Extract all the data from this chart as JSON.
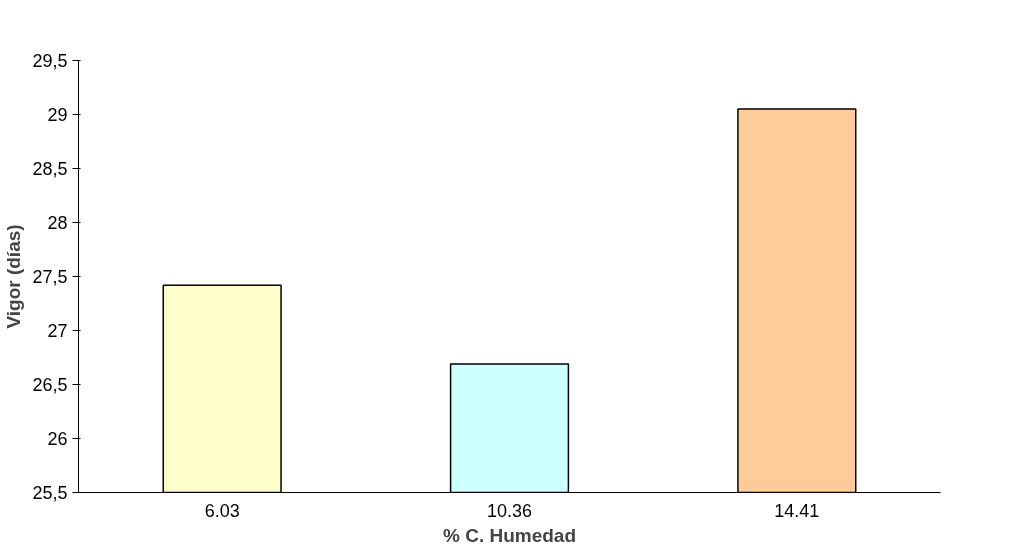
{
  "chart_data": {
    "type": "bar",
    "xlabel": "% C. Humedad",
    "ylabel": "Vigor (días)",
    "categories": [
      "6.03",
      "10.36",
      "14.41"
    ],
    "values": [
      27.42,
      26.69,
      29.05
    ],
    "colors": [
      "#ffffcc",
      "#ccffff",
      "#ffcc99"
    ],
    "ylim": [
      25.5,
      29.5
    ],
    "yticks": [
      {
        "value": 25.5,
        "label": "25,5"
      },
      26,
      {
        "value": 26.5,
        "label": "26,5"
      },
      27,
      {
        "value": 27.5,
        "label": "27,5"
      },
      28,
      {
        "value": 28.5,
        "label": "28,5"
      },
      29,
      {
        "value": 29.5,
        "label": "29,5"
      }
    ],
    "grid": false
  }
}
